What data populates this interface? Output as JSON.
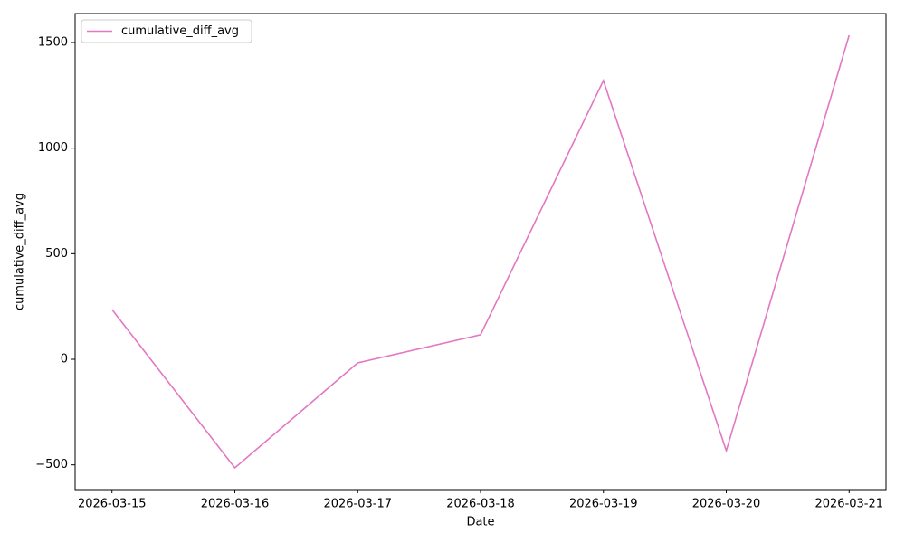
{
  "chart_data": {
    "type": "line",
    "x": [
      "2026-03-15",
      "2026-03-16",
      "2026-03-17",
      "2026-03-18",
      "2026-03-19",
      "2026-03-20",
      "2026-03-21"
    ],
    "series": [
      {
        "name": "cumulative_diff_avg",
        "color": "#e377c2",
        "values": [
          236,
          -514,
          -17,
          116,
          1320,
          -433,
          1534
        ]
      }
    ],
    "xlabel": "Date",
    "ylabel": "cumulative_diff_avg",
    "ylim": [
      -617,
      1637
    ],
    "yticks": [
      {
        "value": -500,
        "label": "−500"
      },
      0,
      500,
      1000,
      1500
    ],
    "legend": "upper left",
    "grid": false
  }
}
